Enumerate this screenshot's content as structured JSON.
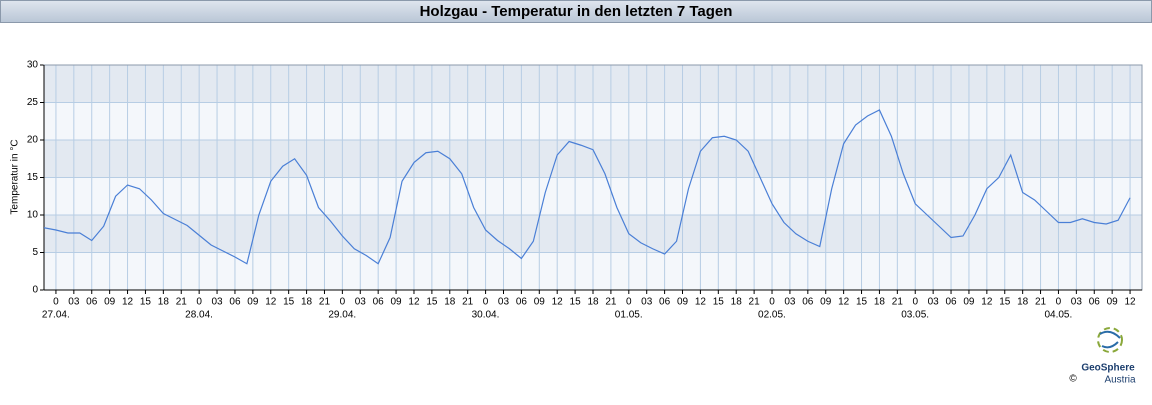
{
  "chart_data": {
    "type": "line",
    "title": "Holzgau - Temperatur in den letzten 7 Tagen",
    "y_label": "Temperatur in °C",
    "x": [
      -2,
      0,
      2,
      4,
      6,
      8,
      10,
      12,
      14,
      16,
      18,
      20,
      22,
      24,
      26,
      28,
      30,
      32,
      34,
      36,
      38,
      40,
      42,
      44,
      46,
      48,
      50,
      52,
      54,
      56,
      58,
      60,
      62,
      64,
      66,
      68,
      70,
      72,
      74,
      76,
      78,
      80,
      82,
      84,
      86,
      88,
      90,
      92,
      94,
      96,
      98,
      100,
      102,
      104,
      106,
      108,
      110,
      112,
      114,
      116,
      118,
      120,
      122,
      124,
      126,
      128,
      130,
      132,
      134,
      136,
      138,
      140,
      142,
      144,
      146,
      148,
      150,
      152,
      154,
      156,
      158,
      160,
      162,
      164,
      166,
      168,
      170,
      172,
      174,
      176,
      178,
      180
    ],
    "values": [
      8.3,
      8.0,
      7.6,
      7.6,
      6.6,
      8.5,
      12.5,
      14.0,
      13.5,
      12.0,
      10.2,
      9.4,
      8.6,
      7.3,
      6.0,
      5.2,
      4.4,
      3.5,
      10.0,
      14.5,
      16.5,
      17.5,
      15.3,
      11.0,
      9.2,
      7.2,
      5.5,
      4.6,
      3.5,
      7.0,
      14.5,
      17.0,
      18.3,
      18.5,
      17.5,
      15.5,
      11.0,
      8.0,
      6.6,
      5.5,
      4.2,
      6.5,
      13.0,
      18.0,
      19.8,
      19.3,
      18.7,
      15.5,
      11.0,
      7.5,
      6.3,
      5.5,
      4.8,
      6.5,
      13.5,
      18.5,
      20.3,
      20.5,
      20.0,
      18.5,
      15.0,
      11.5,
      9.0,
      7.5,
      6.5,
      5.8,
      13.5,
      19.5,
      22.0,
      23.2,
      24.0,
      20.5,
      15.5,
      11.5,
      10.0,
      8.5,
      7.0,
      7.2,
      10.0,
      13.5,
      15.0,
      18.0,
      13.0,
      12.0,
      10.5,
      9.0,
      9.0,
      9.5,
      9.0,
      8.8,
      9.3,
      12.3
    ],
    "color": "#4a7fd6",
    "xlim": [
      -2,
      182
    ],
    "ylim": [
      0,
      30
    ],
    "yticks": [
      0,
      5,
      10,
      15,
      20,
      25,
      30
    ],
    "xticks": [
      0,
      {
        "value": 3,
        "label": "03"
      },
      {
        "value": 6,
        "label": "06"
      },
      {
        "value": 9,
        "label": "09"
      },
      12,
      15,
      18,
      21,
      {
        "value": 24,
        "label": "0"
      },
      {
        "value": 27,
        "label": "03"
      },
      {
        "value": 30,
        "label": "06"
      },
      {
        "value": 33,
        "label": "09"
      },
      {
        "value": 36,
        "label": "12"
      },
      {
        "value": 39,
        "label": "15"
      },
      {
        "value": 42,
        "label": "18"
      },
      {
        "value": 45,
        "label": "21"
      },
      {
        "value": 48,
        "label": "0"
      },
      {
        "value": 51,
        "label": "03"
      },
      {
        "value": 54,
        "label": "06"
      },
      {
        "value": 57,
        "label": "09"
      },
      {
        "value": 60,
        "label": "12"
      },
      {
        "value": 63,
        "label": "15"
      },
      {
        "value": 66,
        "label": "18"
      },
      {
        "value": 69,
        "label": "21"
      },
      {
        "value": 72,
        "label": "0"
      },
      {
        "value": 75,
        "label": "03"
      },
      {
        "value": 78,
        "label": "06"
      },
      {
        "value": 81,
        "label": "09"
      },
      {
        "value": 84,
        "label": "12"
      },
      {
        "value": 87,
        "label": "15"
      },
      {
        "value": 90,
        "label": "18"
      },
      {
        "value": 93,
        "label": "21"
      },
      {
        "value": 96,
        "label": "0"
      },
      {
        "value": 99,
        "label": "03"
      },
      {
        "value": 102,
        "label": "06"
      },
      {
        "value": 105,
        "label": "09"
      },
      {
        "value": 108,
        "label": "12"
      },
      {
        "value": 111,
        "label": "15"
      },
      {
        "value": 114,
        "label": "18"
      },
      {
        "value": 117,
        "label": "21"
      },
      {
        "value": 120,
        "label": "0"
      },
      {
        "value": 123,
        "label": "03"
      },
      {
        "value": 126,
        "label": "06"
      },
      {
        "value": 129,
        "label": "09"
      },
      {
        "value": 132,
        "label": "12"
      },
      {
        "value": 135,
        "label": "15"
      },
      {
        "value": 138,
        "label": "18"
      },
      {
        "value": 141,
        "label": "21"
      },
      {
        "value": 144,
        "label": "0"
      },
      {
        "value": 147,
        "label": "03"
      },
      {
        "value": 150,
        "label": "06"
      },
      {
        "value": 153,
        "label": "09"
      },
      {
        "value": 156,
        "label": "12"
      },
      {
        "value": 159,
        "label": "15"
      },
      {
        "value": 162,
        "label": "18"
      },
      {
        "value": 165,
        "label": "21"
      },
      {
        "value": 168,
        "label": "0"
      },
      {
        "value": 171,
        "label": "03"
      },
      {
        "value": 174,
        "label": "06"
      },
      {
        "value": 177,
        "label": "09"
      },
      {
        "value": 180,
        "label": "12"
      }
    ],
    "date_labels": [
      {
        "value": 0,
        "label": "27.04."
      },
      {
        "value": 24,
        "label": "28.04."
      },
      {
        "value": 48,
        "label": "29.04."
      },
      {
        "value": 72,
        "label": "30.04."
      },
      {
        "value": 96,
        "label": "01.05."
      },
      {
        "value": 120,
        "label": "02.05."
      },
      {
        "value": 144,
        "label": "03.05."
      },
      {
        "value": 168,
        "label": "04.05."
      }
    ],
    "grid": true,
    "logo": {
      "name": "GeoSphere",
      "sub": "Austria",
      "copyright": "©"
    }
  }
}
